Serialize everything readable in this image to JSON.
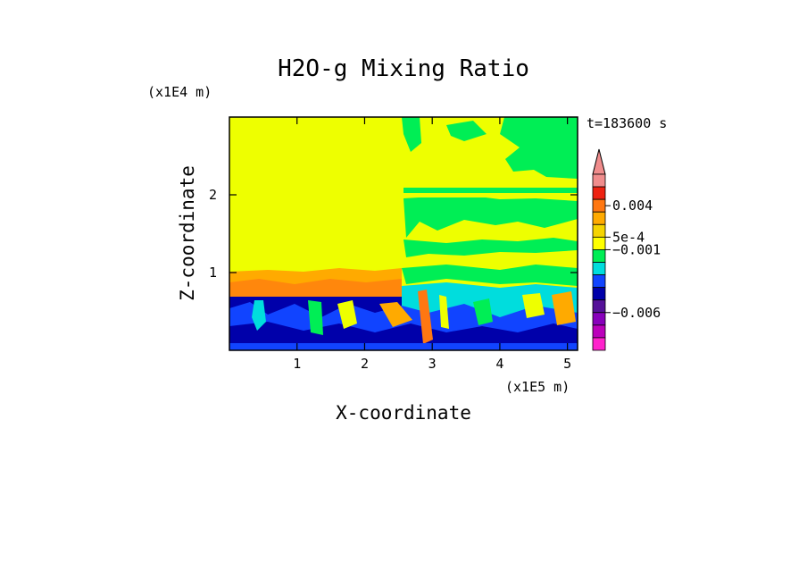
{
  "chart_data": {
    "type": "heatmap",
    "title": "H2O-g Mixing Ratio",
    "xlabel": "X-coordinate",
    "ylabel": "Z-coordinate",
    "x_scale_note": "(x1E5 m)",
    "y_scale_note": "(x1E4 m)",
    "time_label": "t=183600 s",
    "xlim": [
      0,
      5.15
    ],
    "ylim": [
      0,
      3.0
    ],
    "x_ticks": [
      1,
      2,
      3,
      4,
      5
    ],
    "x_tick_labels": [
      "1",
      "2",
      "3",
      "4",
      "5"
    ],
    "y_ticks": [
      1,
      2
    ],
    "y_tick_labels": [
      "1",
      "2"
    ],
    "colorbar": {
      "levels_top_to_bottom": [
        "#f08c8c",
        "#ee2211",
        "#ff7711",
        "#ffaa00",
        "#f5d400",
        "#ffff00",
        "#00ee55",
        "#00dddd",
        "#1144ff",
        "#0000aa",
        "#551199",
        "#8800bb",
        "#bb00bb",
        "#ff22cc"
      ],
      "labels": [
        {
          "text": "0.004",
          "level": 2.5
        },
        {
          "text": "5e-4",
          "level": 5.0
        },
        {
          "text": "−0.001",
          "level": 6.0
        },
        {
          "text": "−0.006",
          "level": 11.0
        }
      ],
      "extend": "max"
    },
    "field_regions": [
      {
        "note": "upper atmosphere, left",
        "x": [
          0,
          2.55
        ],
        "z": [
          1.0,
          3.0
        ],
        "color": "#eeff00"
      },
      {
        "note": "upper atmosphere, right",
        "x": [
          2.55,
          5.15
        ],
        "z": [
          1.0,
          3.0
        ],
        "color": "#eeff00"
      },
      {
        "note": "green moist band high right",
        "x": [
          3.9,
          5.15
        ],
        "z": [
          2.55,
          3.0
        ],
        "color": "#00ee55"
      },
      {
        "note": "green band mid right",
        "x": [
          2.55,
          5.15
        ],
        "z": [
          1.75,
          2.1
        ],
        "color": "#00ee55"
      },
      {
        "note": "orange transition layer",
        "x": [
          0,
          2.55
        ],
        "z": [
          0.72,
          1.0
        ],
        "color": "#ffaa00"
      },
      {
        "note": "boundary layer",
        "x": [
          0,
          5.15
        ],
        "z": [
          0,
          0.72
        ],
        "color": "#0000aa"
      }
    ]
  }
}
